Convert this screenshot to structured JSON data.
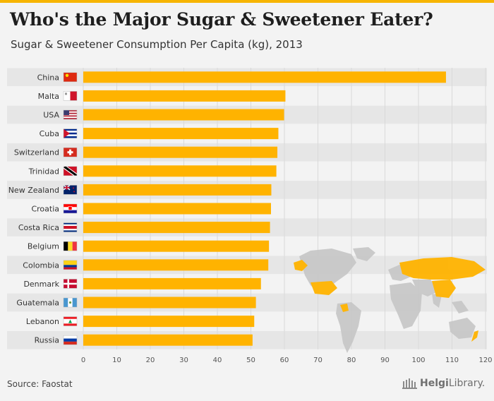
{
  "header": {
    "title": "Who's the Major Sugar & Sweetener Eater?",
    "subtitle": "Sugar & Sweetener Consumption Per Capita (kg), 2013"
  },
  "footer": {
    "source": "Source: Faostat",
    "logo_text_bold": "Helgi",
    "logo_text": "Library."
  },
  "colors": {
    "bar": "#ffb300",
    "row_dark": "#e6e6e6",
    "row_light": "#f3f3f3",
    "grid": "#d9d9d9",
    "accent": "#f7b500",
    "map_land": "#c8c8c8",
    "map_highlight": "#ffb300"
  },
  "chart_data": {
    "type": "bar",
    "orientation": "horizontal",
    "title": "Who's the Major Sugar & Sweetener Eater?",
    "subtitle": "Sugar & Sweetener Consumption Per Capita (kg), 2013",
    "xlabel": "",
    "ylabel": "",
    "xlim": [
      0,
      120
    ],
    "xticks": [
      0,
      10,
      20,
      30,
      40,
      50,
      60,
      70,
      80,
      90,
      100,
      110,
      120
    ],
    "grid": true,
    "categories": [
      "China",
      "Malta",
      "USA",
      "Cuba",
      "Switzerland",
      "Trinidad",
      "New Zealand",
      "Croatia",
      "Costa Rica",
      "Belgium",
      "Colombia",
      "Denmark",
      "Guatemala",
      "Lebanon",
      "Russia"
    ],
    "flags": [
      "china-flag-icon",
      "malta-flag-icon",
      "usa-flag-icon",
      "cuba-flag-icon",
      "switzerland-flag-icon",
      "trinidad-flag-icon",
      "new-zealand-flag-icon",
      "croatia-flag-icon",
      "costa-rica-flag-icon",
      "belgium-flag-icon",
      "colombia-flag-icon",
      "denmark-flag-icon",
      "guatemala-flag-icon",
      "lebanon-flag-icon",
      "russia-flag-icon"
    ],
    "values": [
      108.2,
      60.3,
      59.9,
      58.2,
      57.9,
      57.6,
      56.1,
      56.0,
      55.7,
      55.4,
      55.2,
      53.0,
      51.5,
      51.0,
      50.5
    ]
  }
}
